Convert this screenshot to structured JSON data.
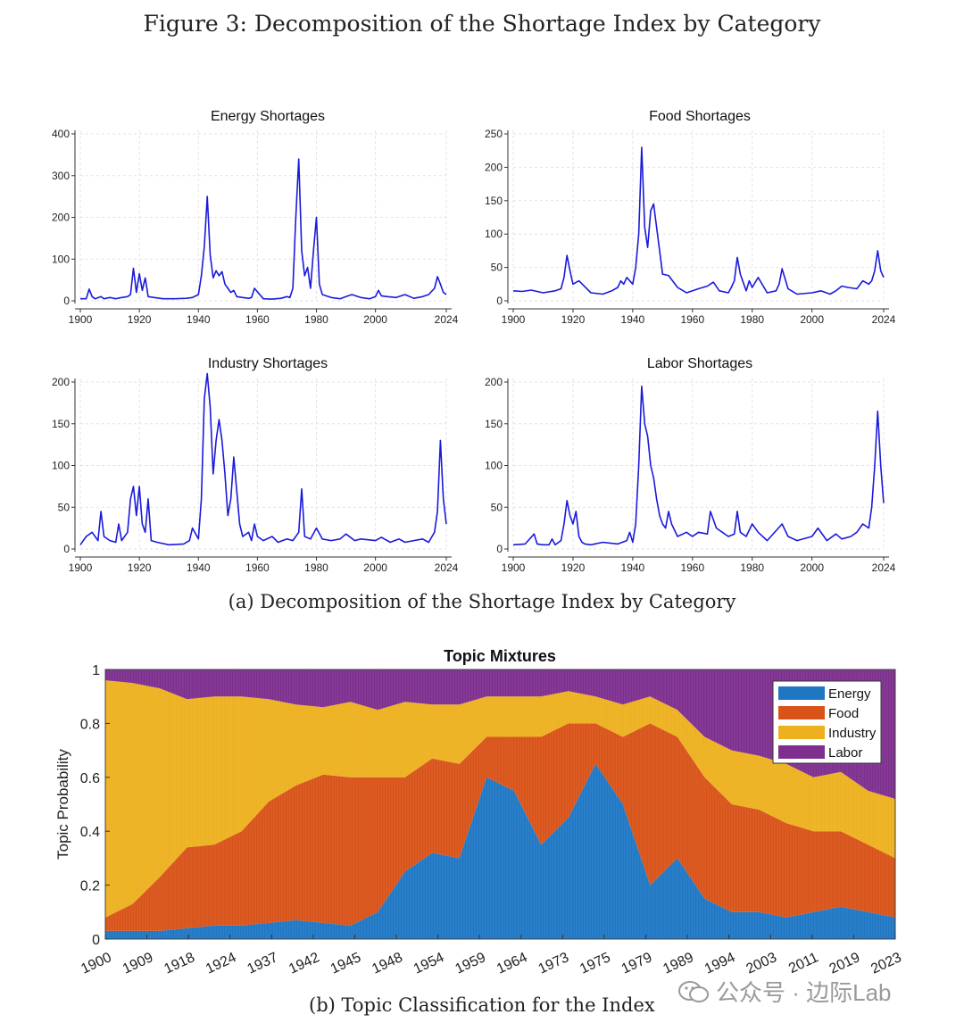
{
  "figure_title": "Figure 3: Decomposition of the Shortage Index by Category",
  "caption_a": "(a) Decomposition of the Shortage Index by Category",
  "caption_b": "(b) Topic Classification for the Index",
  "watermark": "公众号 · 边际Lab",
  "colors": {
    "line": "#1a1adb",
    "energy": "#1f77c4",
    "food": "#d95319",
    "industry": "#edb120",
    "labor": "#7e2f8e"
  },
  "chart_data": [
    {
      "type": "line",
      "title": "Energy Shortages",
      "xlim": [
        1900,
        2024
      ],
      "ylim": [
        0,
        400
      ],
      "xticks": [
        1900,
        1920,
        1940,
        1960,
        1980,
        2000,
        2024
      ],
      "yticks": [
        0,
        100,
        200,
        300,
        400
      ],
      "grid": true,
      "x": [
        1900,
        1902,
        1903,
        1904,
        1905,
        1907,
        1908,
        1910,
        1912,
        1914,
        1916,
        1917,
        1918,
        1919,
        1920,
        1921,
        1922,
        1923,
        1925,
        1928,
        1932,
        1936,
        1938,
        1940,
        1941,
        1942,
        1943,
        1944,
        1945,
        1946,
        1947,
        1948,
        1949,
        1950,
        1951,
        1952,
        1953,
        1955,
        1957,
        1958,
        1959,
        1962,
        1965,
        1968,
        1970,
        1971,
        1972,
        1973,
        1974,
        1975,
        1976,
        1977,
        1978,
        1979,
        1980,
        1981,
        1982,
        1985,
        1988,
        1990,
        1992,
        1995,
        1998,
        2000,
        2001,
        2002,
        2004,
        2007,
        2010,
        2013,
        2016,
        2018,
        2020,
        2021,
        2022,
        2023,
        2024
      ],
      "y": [
        5,
        5,
        28,
        10,
        5,
        10,
        5,
        8,
        5,
        8,
        10,
        15,
        78,
        20,
        65,
        25,
        55,
        10,
        8,
        5,
        5,
        6,
        8,
        15,
        60,
        130,
        250,
        110,
        55,
        72,
        60,
        70,
        40,
        30,
        20,
        25,
        10,
        8,
        6,
        8,
        30,
        5,
        4,
        6,
        10,
        8,
        30,
        200,
        340,
        120,
        60,
        80,
        30,
        120,
        200,
        40,
        15,
        8,
        5,
        10,
        15,
        8,
        5,
        10,
        25,
        12,
        10,
        8,
        15,
        6,
        10,
        15,
        30,
        58,
        40,
        20,
        15
      ]
    },
    {
      "type": "line",
      "title": "Food Shortages",
      "xlim": [
        1900,
        2024
      ],
      "ylim": [
        0,
        250
      ],
      "xticks": [
        1900,
        1920,
        1940,
        1960,
        1980,
        2000,
        2024
      ],
      "yticks": [
        0,
        50,
        100,
        150,
        200,
        250
      ],
      "grid": true,
      "x": [
        1900,
        1903,
        1906,
        1910,
        1914,
        1916,
        1917,
        1918,
        1919,
        1920,
        1922,
        1926,
        1930,
        1933,
        1935,
        1936,
        1937,
        1938,
        1940,
        1941,
        1942,
        1943,
        1944,
        1945,
        1946,
        1947,
        1948,
        1949,
        1950,
        1952,
        1955,
        1958,
        1962,
        1965,
        1967,
        1969,
        1972,
        1973,
        1974,
        1975,
        1976,
        1978,
        1979,
        1980,
        1982,
        1985,
        1988,
        1989,
        1990,
        1992,
        1995,
        2000,
        2003,
        2006,
        2008,
        2010,
        2012,
        2015,
        2017,
        2019,
        2020,
        2021,
        2022,
        2023,
        2024
      ],
      "y": [
        15,
        14,
        16,
        12,
        15,
        18,
        35,
        68,
        45,
        25,
        30,
        12,
        10,
        15,
        20,
        30,
        25,
        35,
        25,
        50,
        100,
        230,
        110,
        80,
        135,
        145,
        110,
        75,
        40,
        38,
        20,
        12,
        18,
        22,
        28,
        15,
        12,
        20,
        30,
        65,
        40,
        15,
        30,
        20,
        35,
        12,
        15,
        25,
        48,
        18,
        10,
        12,
        15,
        10,
        15,
        22,
        20,
        18,
        30,
        25,
        30,
        45,
        75,
        45,
        35
      ]
    },
    {
      "type": "line",
      "title": "Industry Shortages",
      "xlim": [
        1900,
        2024
      ],
      "ylim": [
        0,
        200
      ],
      "xticks": [
        1900,
        1920,
        1940,
        1960,
        1980,
        2000,
        2024
      ],
      "yticks": [
        0,
        50,
        100,
        150,
        200
      ],
      "grid": true,
      "x": [
        1900,
        1902,
        1904,
        1906,
        1907,
        1908,
        1910,
        1912,
        1913,
        1914,
        1916,
        1917,
        1918,
        1919,
        1920,
        1921,
        1922,
        1923,
        1924,
        1926,
        1930,
        1935,
        1937,
        1938,
        1940,
        1941,
        1942,
        1943,
        1944,
        1945,
        1946,
        1947,
        1948,
        1949,
        1950,
        1951,
        1952,
        1953,
        1954,
        1955,
        1957,
        1958,
        1959,
        1960,
        1962,
        1965,
        1967,
        1970,
        1972,
        1974,
        1975,
        1976,
        1978,
        1980,
        1982,
        1985,
        1988,
        1990,
        1993,
        1995,
        2000,
        2002,
        2005,
        2008,
        2010,
        2013,
        2016,
        2018,
        2020,
        2021,
        2022,
        2023,
        2024
      ],
      "y": [
        5,
        15,
        20,
        10,
        45,
        15,
        10,
        8,
        30,
        10,
        20,
        60,
        75,
        40,
        75,
        30,
        20,
        60,
        10,
        8,
        5,
        6,
        10,
        25,
        12,
        60,
        180,
        210,
        170,
        90,
        130,
        155,
        130,
        90,
        40,
        60,
        110,
        70,
        30,
        15,
        20,
        10,
        30,
        15,
        10,
        15,
        8,
        12,
        10,
        20,
        72,
        15,
        12,
        25,
        12,
        10,
        12,
        18,
        10,
        12,
        10,
        14,
        8,
        12,
        8,
        10,
        12,
        8,
        20,
        45,
        130,
        60,
        30
      ]
    },
    {
      "type": "line",
      "title": "Labor Shortages",
      "xlim": [
        1900,
        2024
      ],
      "ylim": [
        0,
        200
      ],
      "xticks": [
        1900,
        1920,
        1940,
        1960,
        1980,
        2000,
        2024
      ],
      "yticks": [
        0,
        50,
        100,
        150,
        200
      ],
      "grid": true,
      "x": [
        1900,
        1904,
        1907,
        1908,
        1910,
        1912,
        1913,
        1914,
        1916,
        1917,
        1918,
        1919,
        1920,
        1921,
        1922,
        1923,
        1924,
        1926,
        1930,
        1935,
        1938,
        1939,
        1940,
        1941,
        1942,
        1943,
        1944,
        1945,
        1946,
        1947,
        1948,
        1949,
        1950,
        1951,
        1952,
        1953,
        1955,
        1958,
        1960,
        1962,
        1965,
        1966,
        1968,
        1970,
        1972,
        1974,
        1975,
        1976,
        1978,
        1980,
        1982,
        1985,
        1990,
        1992,
        1995,
        2000,
        2002,
        2005,
        2008,
        2010,
        2013,
        2015,
        2017,
        2019,
        2020,
        2021,
        2022,
        2023,
        2024
      ],
      "y": [
        5,
        6,
        18,
        6,
        5,
        5,
        12,
        5,
        10,
        30,
        58,
        40,
        30,
        45,
        15,
        8,
        6,
        5,
        8,
        6,
        10,
        20,
        8,
        30,
        100,
        195,
        150,
        135,
        100,
        85,
        60,
        40,
        30,
        25,
        45,
        30,
        15,
        20,
        15,
        20,
        18,
        45,
        25,
        20,
        15,
        18,
        45,
        20,
        15,
        30,
        20,
        10,
        30,
        15,
        10,
        15,
        25,
        10,
        18,
        12,
        15,
        20,
        30,
        25,
        50,
        100,
        165,
        100,
        55
      ]
    },
    {
      "type": "area",
      "title": "Topic Mixtures",
      "ylabel": "Topic Probability",
      "ylim": [
        0,
        1
      ],
      "yticks": [
        0,
        0.2,
        0.4,
        0.6,
        0.8,
        1
      ],
      "xticks": [
        "1900",
        "1909",
        "1918",
        "1924",
        "1937",
        "1942",
        "1945",
        "1948",
        "1954",
        "1959",
        "1964",
        "1973",
        "1975",
        "1979",
        "1989",
        "1994",
        "2003",
        "2011",
        "2019",
        "2023"
      ],
      "legend_position": "top-right",
      "series": [
        {
          "name": "Energy",
          "values": [
            0.03,
            0.03,
            0.03,
            0.04,
            0.05,
            0.05,
            0.06,
            0.07,
            0.06,
            0.05,
            0.1,
            0.25,
            0.32,
            0.3,
            0.6,
            0.55,
            0.35,
            0.45,
            0.65,
            0.5,
            0.2,
            0.3,
            0.15,
            0.1,
            0.1,
            0.08,
            0.1,
            0.12,
            0.1,
            0.08
          ]
        },
        {
          "name": "Food",
          "values": [
            0.05,
            0.1,
            0.2,
            0.3,
            0.3,
            0.35,
            0.45,
            0.5,
            0.55,
            0.55,
            0.5,
            0.35,
            0.35,
            0.35,
            0.15,
            0.2,
            0.4,
            0.35,
            0.15,
            0.25,
            0.6,
            0.45,
            0.45,
            0.4,
            0.38,
            0.35,
            0.3,
            0.28,
            0.25,
            0.22
          ]
        },
        {
          "name": "Industry",
          "values": [
            0.88,
            0.82,
            0.7,
            0.55,
            0.55,
            0.5,
            0.38,
            0.3,
            0.25,
            0.28,
            0.25,
            0.28,
            0.2,
            0.22,
            0.15,
            0.15,
            0.15,
            0.12,
            0.1,
            0.12,
            0.1,
            0.1,
            0.15,
            0.2,
            0.2,
            0.22,
            0.2,
            0.22,
            0.2,
            0.22
          ]
        },
        {
          "name": "Labor",
          "values": [
            0.04,
            0.05,
            0.07,
            0.11,
            0.1,
            0.1,
            0.11,
            0.13,
            0.14,
            0.12,
            0.15,
            0.12,
            0.13,
            0.13,
            0.1,
            0.1,
            0.1,
            0.08,
            0.1,
            0.13,
            0.1,
            0.15,
            0.25,
            0.3,
            0.32,
            0.35,
            0.4,
            0.38,
            0.45,
            0.48
          ]
        }
      ]
    }
  ]
}
